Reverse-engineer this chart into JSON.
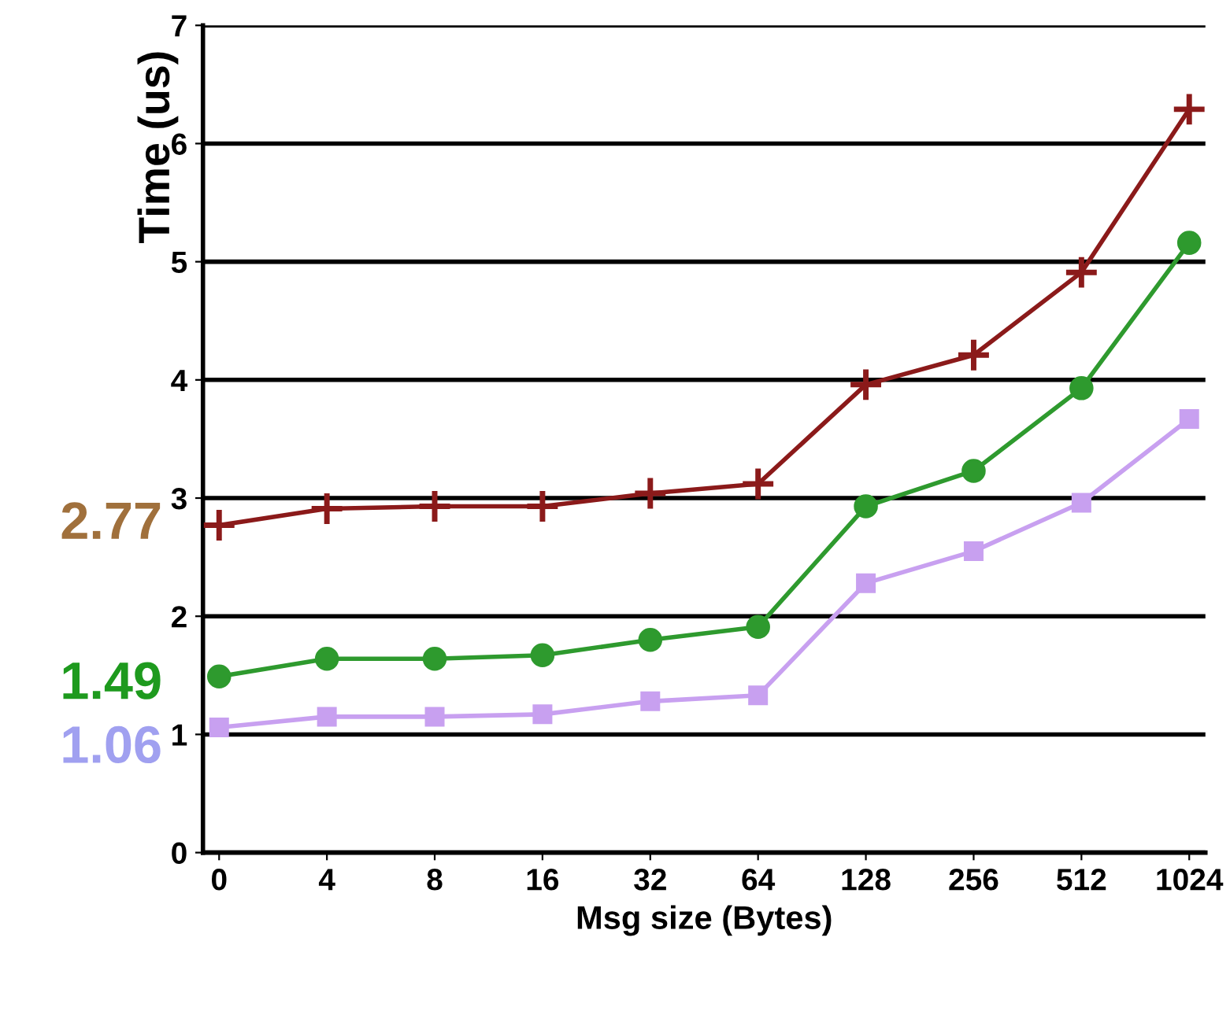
{
  "chart_data": {
    "type": "line",
    "xlabel": "Msg size (Bytes)",
    "ylabel": "Time (us)",
    "categories": [
      "0",
      "4",
      "8",
      "16",
      "32",
      "64",
      "128",
      "256",
      "512",
      "1024"
    ],
    "ylim": [
      0,
      7
    ],
    "yticks": [
      0,
      1,
      2,
      3,
      4,
      5,
      6,
      7
    ],
    "grid": "y",
    "legend": false,
    "line_style": "solid",
    "series": [
      {
        "color": "#8b1a1a",
        "marker": "cross",
        "values": [
          2.77,
          2.91,
          2.93,
          2.93,
          3.04,
          3.12,
          3.96,
          4.21,
          4.91,
          6.29
        ]
      },
      {
        "color": "#2e9a2e",
        "marker": "circle",
        "values": [
          1.49,
          1.64,
          1.64,
          1.67,
          1.8,
          1.91,
          2.93,
          3.23,
          3.93,
          5.16
        ]
      },
      {
        "color": "#c8a0f0",
        "marker": "square",
        "values": [
          1.06,
          1.15,
          1.15,
          1.17,
          1.28,
          1.33,
          2.28,
          2.55,
          2.96,
          3.67
        ]
      }
    ],
    "annotations": [
      {
        "text": "2.77",
        "x": "0",
        "y": 2.77
      },
      {
        "text": "1.49",
        "x": "0",
        "y": 1.49
      },
      {
        "text": "1.06",
        "x": "0",
        "y": 1.06
      }
    ]
  }
}
